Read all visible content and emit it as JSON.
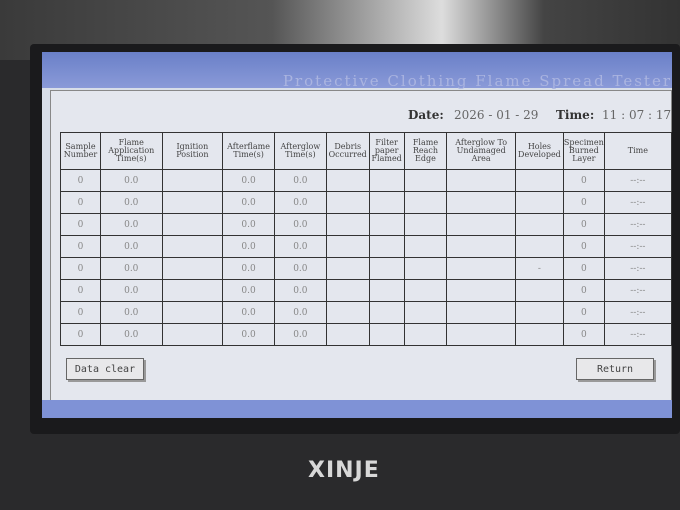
{
  "window": {
    "title": "Protective Clothing Flame Spread Tester"
  },
  "header": {
    "date_label": "Date:",
    "date_value": "2026 - 01 - 29",
    "time_label": "Time:",
    "time_value": "11 : 07 : 17"
  },
  "table": {
    "columns": [
      "Sample Number",
      "Flame Application Time(s)",
      "Ignition Position",
      "Afterflame Time(s)",
      "Afterglow Time(s)",
      "Debris Occurred",
      "Filter paper Flamed",
      "Flame Reach Edge",
      "Afterglow To Undamaged Area",
      "Holes Developed",
      "Specimen Burned Layer",
      "Time"
    ],
    "rows": [
      [
        "0",
        "0.0",
        "",
        "0.0",
        "0.0",
        "",
        "",
        "",
        "",
        "",
        "0",
        "--:--"
      ],
      [
        "0",
        "0.0",
        "",
        "0.0",
        "0.0",
        "",
        "",
        "",
        "",
        "",
        "0",
        "--:--"
      ],
      [
        "0",
        "0.0",
        "",
        "0.0",
        "0.0",
        "",
        "",
        "",
        "",
        "",
        "0",
        "--:--"
      ],
      [
        "0",
        "0.0",
        "",
        "0.0",
        "0.0",
        "",
        "",
        "",
        "",
        "",
        "0",
        "--:--"
      ],
      [
        "0",
        "0.0",
        "",
        "0.0",
        "0.0",
        "",
        "",
        "",
        "",
        "-",
        "0",
        "--:--"
      ],
      [
        "0",
        "0.0",
        "",
        "0.0",
        "0.0",
        "",
        "",
        "",
        "",
        "",
        "0",
        "--:--"
      ],
      [
        "0",
        "0.0",
        "",
        "0.0",
        "0.0",
        "",
        "",
        "",
        "",
        "",
        "0",
        "--:--"
      ],
      [
        "0",
        "0.0",
        "",
        "0.0",
        "0.0",
        "",
        "",
        "",
        "",
        "",
        "0",
        "--:--"
      ]
    ]
  },
  "buttons": {
    "data_clear": "Data clear",
    "return": "Return"
  },
  "brand": {
    "logo": "XINJE"
  }
}
